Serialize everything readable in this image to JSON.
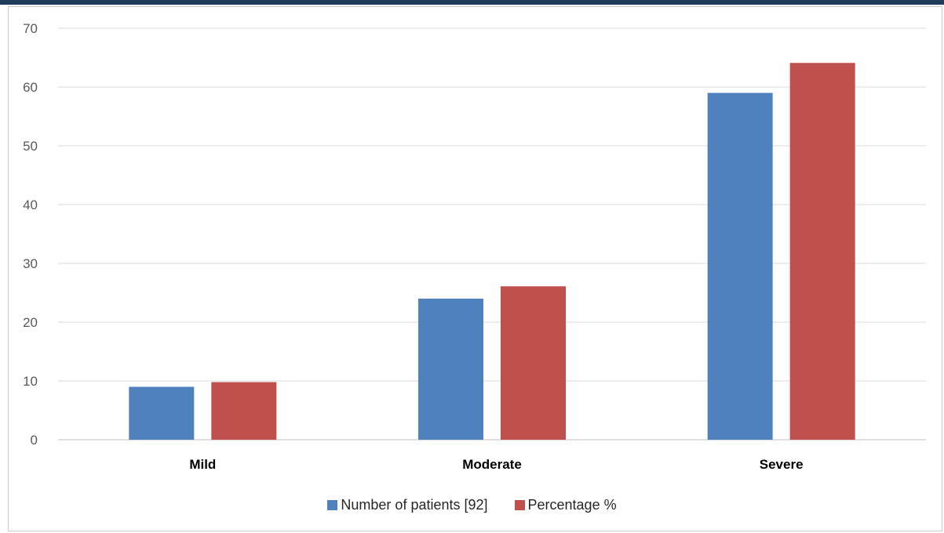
{
  "chart_data": {
    "type": "bar",
    "title": "",
    "xlabel": "",
    "ylabel": "",
    "categories": [
      "Mild",
      "Moderate",
      "Severe"
    ],
    "series": [
      {
        "name": "Number of patients [92]",
        "color": "#4f81bd",
        "values": [
          9,
          24,
          59
        ]
      },
      {
        "name": "Percentage %",
        "color": "#c0504d",
        "values": [
          9.8,
          26.1,
          64.1
        ]
      }
    ],
    "ylim": [
      0,
      70
    ],
    "yticks": [
      "0",
      "10",
      "20",
      "30",
      "40",
      "50",
      "60",
      "70"
    ],
    "grid": true,
    "legend_position": "bottom"
  }
}
